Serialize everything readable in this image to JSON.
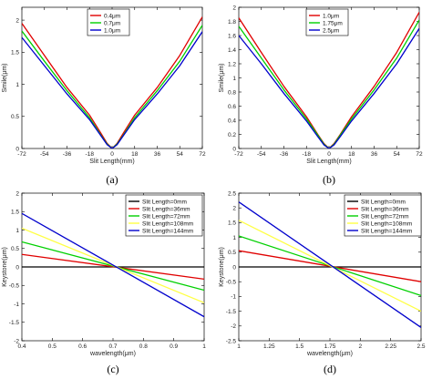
{
  "chart_data": [
    {
      "type": "line",
      "caption": "(a)",
      "xlabel": "Slit Length(mm)",
      "ylabel": "Smile(μm)",
      "xlim": [
        -72,
        72
      ],
      "ylim": [
        0,
        2.2
      ],
      "xticks": [
        "-72",
        "-54",
        "-36",
        "-18",
        "0",
        "18",
        "36",
        "54",
        "72"
      ],
      "yticks": [
        "0",
        "0.5",
        "1",
        "1.5",
        "2"
      ],
      "legend": "top-center",
      "x": [
        -72,
        -54,
        -36,
        -18,
        -9,
        -4,
        0,
        4,
        9,
        18,
        36,
        54,
        72
      ],
      "series": [
        {
          "name": "0.4μm",
          "color": "#e00000",
          "values": [
            1.95,
            1.45,
            0.95,
            0.52,
            0.24,
            0.08,
            0.0,
            0.08,
            0.24,
            0.52,
            0.95,
            1.45,
            2.05
          ]
        },
        {
          "name": "0.7μm",
          "color": "#00d000",
          "values": [
            1.83,
            1.36,
            0.9,
            0.48,
            0.21,
            0.07,
            0.0,
            0.07,
            0.21,
            0.48,
            0.9,
            1.36,
            1.92
          ]
        },
        {
          "name": "1.0μm",
          "color": "#0000cc",
          "values": [
            1.73,
            1.29,
            0.85,
            0.45,
            0.2,
            0.06,
            0.0,
            0.06,
            0.2,
            0.45,
            0.85,
            1.29,
            1.82
          ]
        }
      ]
    },
    {
      "type": "line",
      "caption": "(b)",
      "xlabel": "Slit Length(mm)",
      "ylabel": "Smile(μm)",
      "xlim": [
        -72,
        72
      ],
      "ylim": [
        0,
        2
      ],
      "xticks": [
        "-72",
        "-54",
        "-36",
        "-18",
        "0",
        "18",
        "36",
        "54",
        "72"
      ],
      "yticks": [
        "0",
        "0.2",
        "0.4",
        "0.6",
        "0.8",
        "1",
        "1.2",
        "1.4",
        "1.6",
        "1.8",
        "2"
      ],
      "legend": "top-center",
      "x": [
        -72,
        -54,
        -36,
        -18,
        -9,
        -4,
        0,
        4,
        9,
        18,
        36,
        54,
        72
      ],
      "series": [
        {
          "name": "1.0μm",
          "color": "#e00000",
          "values": [
            1.85,
            1.36,
            0.88,
            0.45,
            0.2,
            0.07,
            0.0,
            0.07,
            0.2,
            0.45,
            0.88,
            1.36,
            1.93
          ]
        },
        {
          "name": "1.75μm",
          "color": "#00d000",
          "values": [
            1.73,
            1.28,
            0.83,
            0.42,
            0.19,
            0.06,
            0.0,
            0.06,
            0.19,
            0.42,
            0.83,
            1.28,
            1.82
          ]
        },
        {
          "name": "2.5μm",
          "color": "#0000cc",
          "values": [
            1.6,
            1.2,
            0.78,
            0.39,
            0.17,
            0.05,
            0.0,
            0.05,
            0.17,
            0.39,
            0.78,
            1.2,
            1.7
          ]
        }
      ]
    },
    {
      "type": "line",
      "caption": "(c)",
      "xlabel": "wavelength(μm)",
      "ylabel": "Keystone(μm)",
      "xlim": [
        0.4,
        1.0
      ],
      "ylim": [
        -2,
        2
      ],
      "xticks": [
        "0.4",
        "0.5",
        "0.6",
        "0.7",
        "0.8",
        "0.9",
        "1"
      ],
      "yticks": [
        "-2",
        "-1.5",
        "-1",
        "-0.5",
        "0",
        "0.5",
        "1",
        "1.5",
        "2"
      ],
      "legend": "top-right",
      "x": [
        0.4,
        1.0
      ],
      "series": [
        {
          "name": "Slit Length=0mm",
          "color": "#000000",
          "values": [
            0.0,
            0.0
          ]
        },
        {
          "name": "Slit Length=36mm",
          "color": "#e00000",
          "values": [
            0.34,
            -0.33
          ]
        },
        {
          "name": "Slit Length=72mm",
          "color": "#00d000",
          "values": [
            0.68,
            -0.63
          ]
        },
        {
          "name": "Slit Length=108mm",
          "color": "#ffff44",
          "values": [
            1.05,
            -0.97
          ]
        },
        {
          "name": "Slit Length=144mm",
          "color": "#0000cc",
          "values": [
            1.45,
            -1.35
          ]
        }
      ]
    },
    {
      "type": "line",
      "caption": "(d)",
      "xlabel": "wavelength(μm)",
      "ylabel": "Keystone(μm)",
      "xlim": [
        1,
        2.5
      ],
      "ylim": [
        -2.5,
        2.5
      ],
      "xticks": [
        "1",
        "1.25",
        "1.5",
        "1.75",
        "2",
        "2.25",
        "2.5"
      ],
      "yticks": [
        "-2.5",
        "-2",
        "-1.5",
        "-1",
        "-0.5",
        "0",
        "0.5",
        "1",
        "1.5",
        "2",
        "2.5"
      ],
      "legend": "top-right",
      "x": [
        1.0,
        2.5
      ],
      "series": [
        {
          "name": "Slit Length=0mm",
          "color": "#000000",
          "values": [
            0.0,
            0.0
          ]
        },
        {
          "name": "Slit Length=36mm",
          "color": "#e00000",
          "values": [
            0.55,
            -0.5
          ]
        },
        {
          "name": "Slit Length=72mm",
          "color": "#00d000",
          "values": [
            1.05,
            -0.97
          ]
        },
        {
          "name": "Slit Length=108mm",
          "color": "#ffff44",
          "values": [
            1.58,
            -1.5
          ]
        },
        {
          "name": "Slit Length=144mm",
          "color": "#0000cc",
          "values": [
            2.2,
            -2.05
          ]
        }
      ]
    }
  ]
}
